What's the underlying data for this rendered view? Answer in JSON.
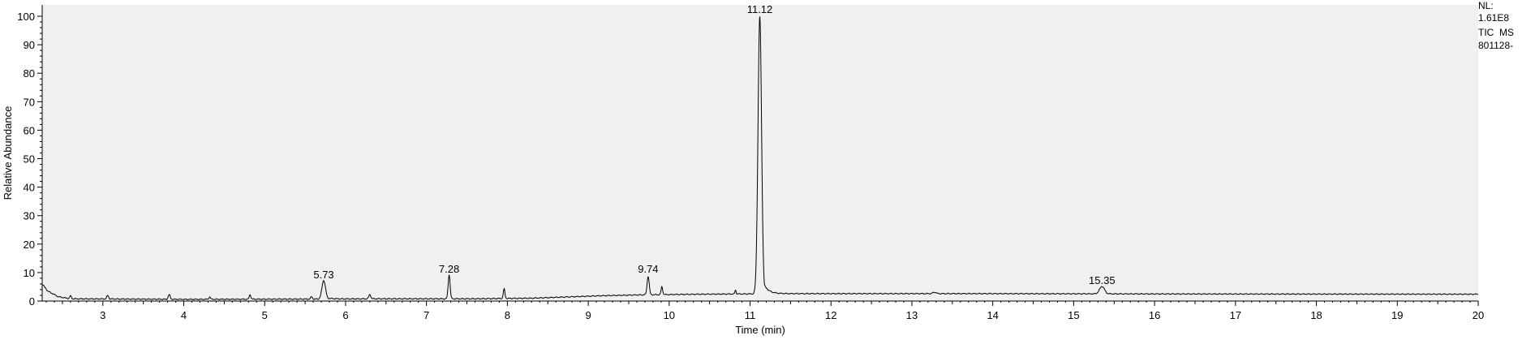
{
  "chart_data": {
    "type": "line",
    "title": "",
    "xlabel": "Time (min)",
    "ylabel": "Relative Abundance",
    "xlim": [
      2.25,
      20
    ],
    "ylim": [
      0,
      104
    ],
    "xticks": [
      3,
      4,
      5,
      6,
      7,
      8,
      9,
      10,
      11,
      12,
      13,
      14,
      15,
      16,
      17,
      18,
      19,
      20
    ],
    "yticks": [
      0,
      10,
      20,
      30,
      40,
      50,
      60,
      70,
      80,
      90,
      100
    ],
    "grid": false,
    "plot_background": "#f0f0f0",
    "line_color": "#000000",
    "baseline": [
      [
        2.25,
        6
      ],
      [
        2.32,
        3.5
      ],
      [
        2.45,
        1.5
      ],
      [
        2.6,
        0.8
      ],
      [
        4.0,
        0.6
      ],
      [
        5.6,
        0.7
      ],
      [
        6.4,
        0.8
      ],
      [
        7.6,
        0.8
      ],
      [
        8.3,
        1.0
      ],
      [
        8.8,
        1.5
      ],
      [
        9.2,
        1.9
      ],
      [
        9.7,
        2.2
      ],
      [
        10.4,
        2.4
      ],
      [
        11.4,
        2.6
      ],
      [
        14.0,
        2.6
      ],
      [
        16.0,
        2.5
      ],
      [
        20.0,
        2.4
      ]
    ],
    "peaks": [
      {
        "x": 2.6,
        "h": 1.0,
        "w": 0.01
      },
      {
        "x": 3.06,
        "h": 1.2,
        "w": 0.012
      },
      {
        "x": 3.82,
        "h": 1.6,
        "w": 0.012
      },
      {
        "x": 4.32,
        "h": 0.8,
        "w": 0.01
      },
      {
        "x": 4.82,
        "h": 1.6,
        "w": 0.01
      },
      {
        "x": 5.58,
        "h": 0.8,
        "w": 0.01
      },
      {
        "x": 5.73,
        "h": 6.5,
        "w": 0.022,
        "tail": 0.08
      },
      {
        "x": 6.3,
        "h": 1.5,
        "w": 0.012
      },
      {
        "x": 7.28,
        "h": 8.4,
        "w": 0.012
      },
      {
        "x": 7.96,
        "h": 3.3,
        "w": 0.01
      },
      {
        "x": 9.74,
        "h": 6.5,
        "w": 0.013
      },
      {
        "x": 9.91,
        "h": 2.7,
        "w": 0.01
      },
      {
        "x": 10.82,
        "h": 1.3,
        "w": 0.008
      },
      {
        "x": 11.12,
        "h": 97.4,
        "w": 0.022,
        "tail": 0.06
      },
      {
        "x": 13.28,
        "h": 0.5,
        "w": 0.02
      },
      {
        "x": 15.35,
        "h": 2.6,
        "w": 0.03
      }
    ],
    "annotations": [
      {
        "label": "5.73",
        "x": 5.73,
        "y": 6.9
      },
      {
        "label": "7.28",
        "x": 7.28,
        "y": 8.8
      },
      {
        "label": "9.74",
        "x": 9.74,
        "y": 8.8
      },
      {
        "label": "11.12",
        "x": 11.12,
        "y": 100
      },
      {
        "label": "15.35",
        "x": 15.35,
        "y": 4.9
      }
    ]
  },
  "side_info": {
    "line1": "NL:",
    "line2": "1.61E8",
    "line3": "TIC  MS",
    "line4": "801128-"
  }
}
